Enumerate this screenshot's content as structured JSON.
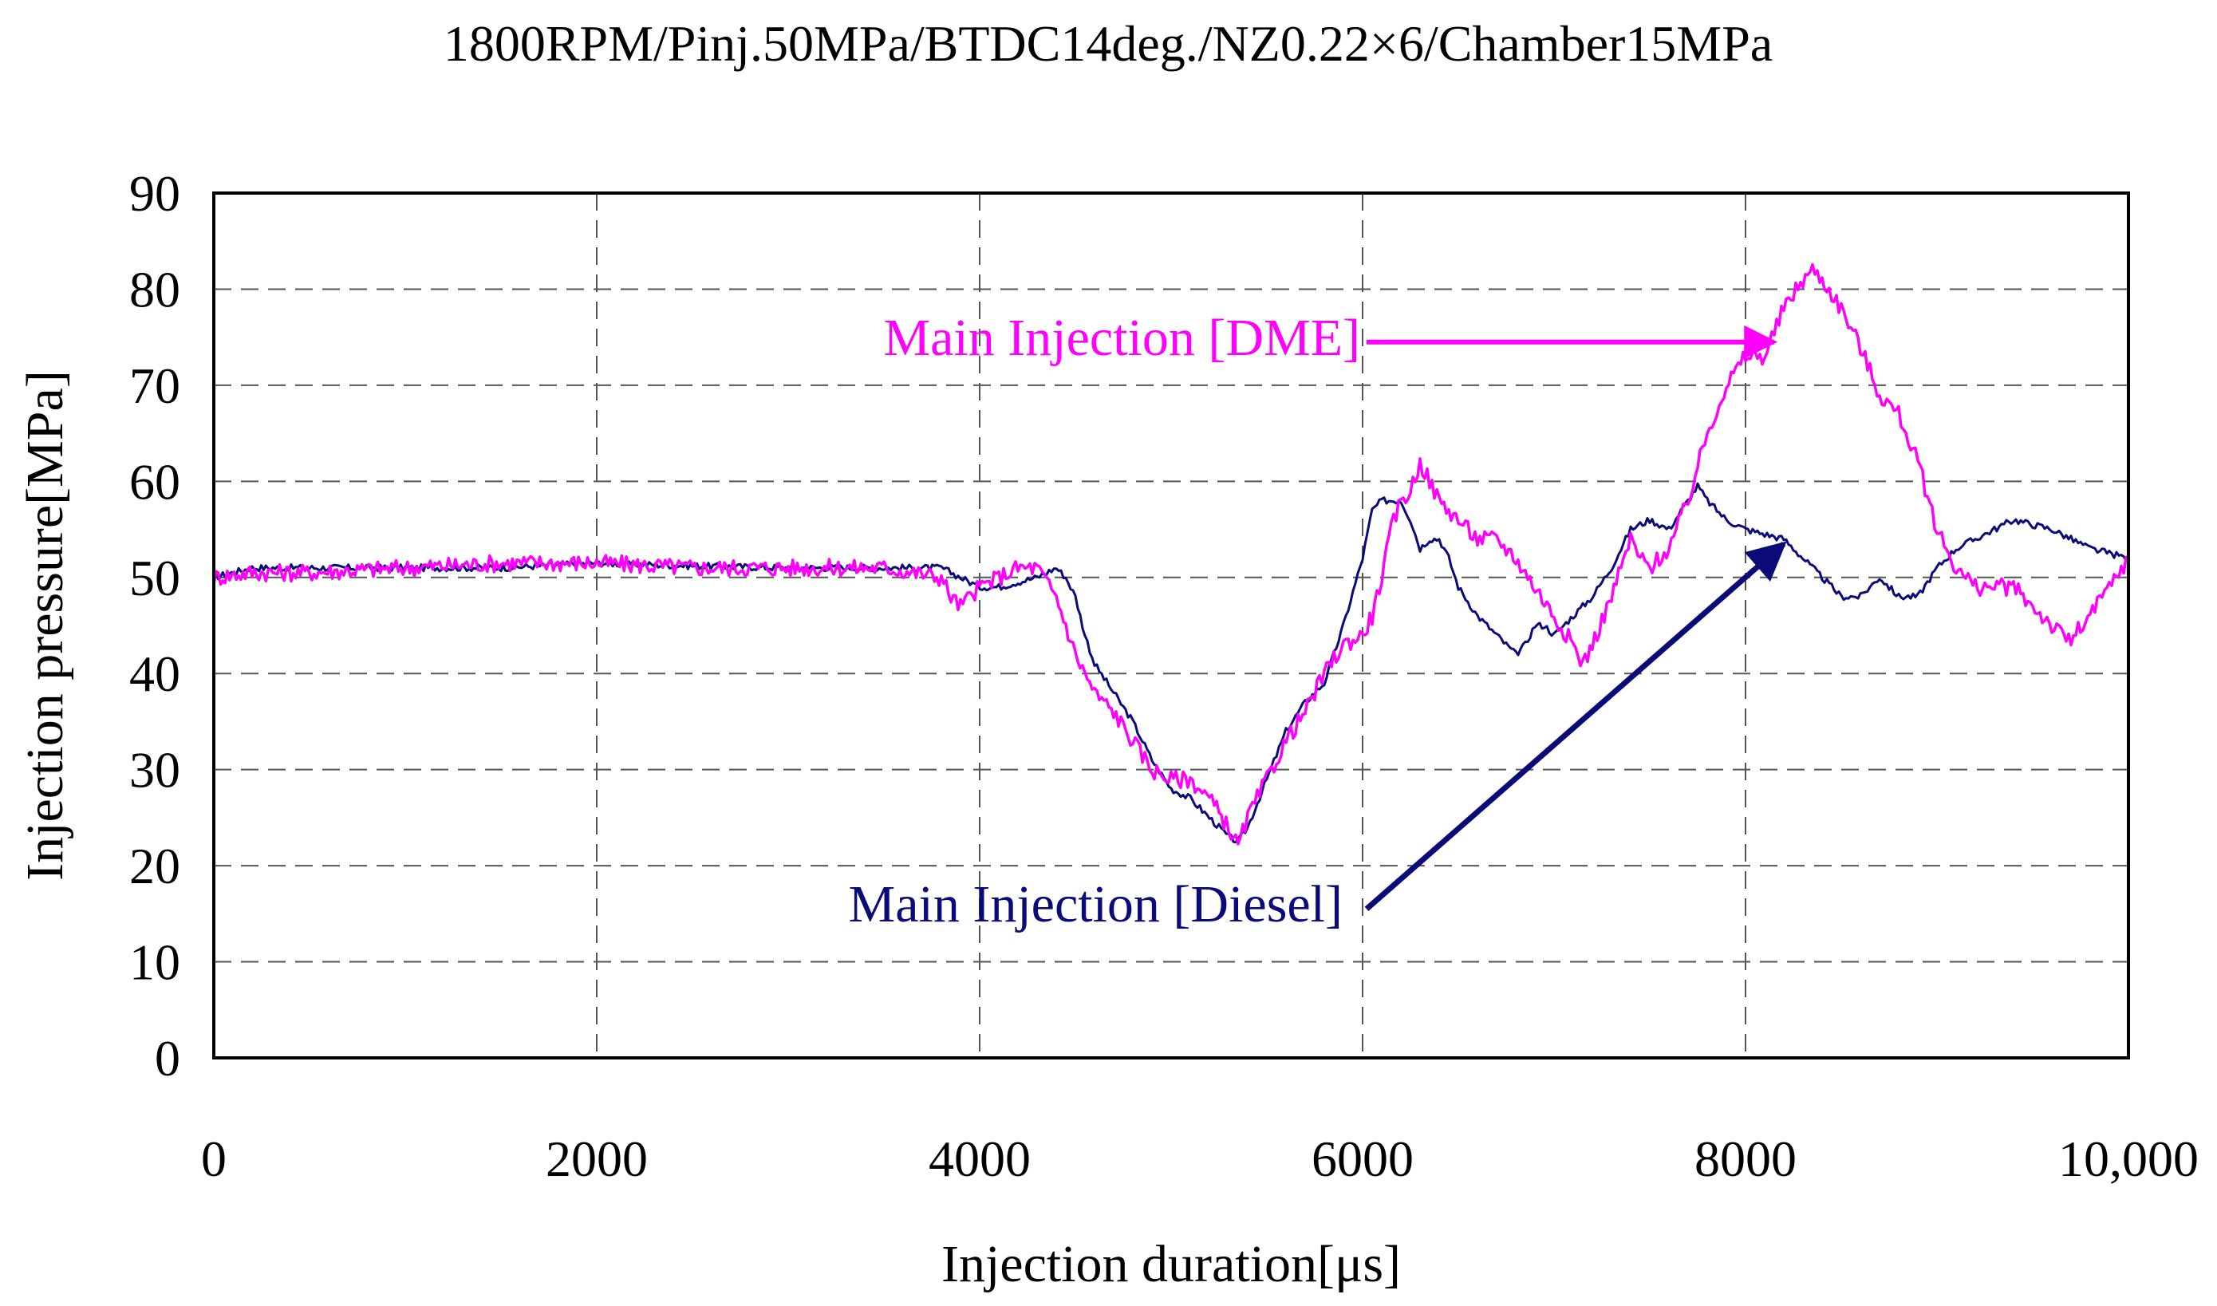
{
  "chart_data": {
    "type": "line",
    "title": "1800RPM/Pinj.50MPa/BTDC14deg./NZ0.22×6/Chamber15MPa",
    "xlabel": "Injection duration[μs]",
    "ylabel": "Injection pressure[MPa]",
    "xlim": [
      0,
      10000
    ],
    "ylim": [
      0,
      90
    ],
    "xticks": [
      0,
      2000,
      4000,
      6000,
      8000,
      10000
    ],
    "xtick_labels": [
      "0",
      "2000",
      "4000",
      "6000",
      "8000",
      "10,000"
    ],
    "yticks": [
      0,
      10,
      20,
      30,
      40,
      50,
      60,
      70,
      80,
      90
    ],
    "ytick_labels": [
      "0",
      "10",
      "20",
      "30",
      "40",
      "50",
      "60",
      "70",
      "80",
      "90"
    ],
    "grid": true,
    "series": [
      {
        "name": "Main Injection [Diesel]",
        "color": "#0a0a78",
        "x": [
          0,
          200,
          500,
          1000,
          1500,
          2000,
          2500,
          3000,
          3500,
          3800,
          3900,
          4000,
          4100,
          4200,
          4300,
          4400,
          4450,
          4500,
          4550,
          4600,
          4700,
          4800,
          4900,
          5000,
          5100,
          5200,
          5300,
          5350,
          5400,
          5500,
          5600,
          5700,
          5800,
          5900,
          6000,
          6050,
          6100,
          6200,
          6250,
          6300,
          6350,
          6400,
          6450,
          6500,
          6600,
          6700,
          6800,
          6850,
          6900,
          6950,
          7000,
          7100,
          7200,
          7300,
          7400,
          7500,
          7600,
          7700,
          7750,
          7800,
          7900,
          8000,
          8100,
          8200,
          8300,
          8400,
          8500,
          8600,
          8700,
          8800,
          8900,
          9000,
          9100,
          9200,
          9300,
          9400,
          9500,
          9600,
          9700,
          9800,
          9900,
          10000
        ],
        "y": [
          50,
          51,
          51,
          51,
          51,
          51.5,
          51.2,
          51,
          51,
          51,
          50,
          49,
          49,
          49.5,
          50,
          51,
          50,
          48,
          44,
          41,
          38,
          35,
          31,
          28,
          27,
          25,
          23,
          22.5,
          24,
          29,
          34,
          37,
          39,
          45,
          52,
          57,
          58,
          58,
          56,
          53,
          54,
          54,
          52,
          49,
          46,
          44,
          42,
          43,
          45,
          45,
          44,
          46,
          48,
          51,
          55,
          56,
          55,
          58,
          59.5,
          58,
          56,
          55,
          54.5,
          54,
          52,
          50,
          48,
          48,
          50,
          48,
          48,
          51,
          53,
          54,
          55,
          56,
          55.5,
          55,
          54,
          53,
          52.5,
          52
        ]
      },
      {
        "name": "Main Injection [DME]",
        "color": "#ff00ff",
        "x": [
          0,
          200,
          500,
          1000,
          1500,
          2000,
          2500,
          3000,
          3500,
          3800,
          3850,
          3900,
          4000,
          4100,
          4200,
          4300,
          4400,
          4500,
          4600,
          4700,
          4800,
          4900,
          5000,
          5100,
          5200,
          5300,
          5350,
          5400,
          5500,
          5600,
          5700,
          5800,
          5900,
          6000,
          6050,
          6100,
          6150,
          6200,
          6250,
          6300,
          6350,
          6400,
          6500,
          6600,
          6700,
          6800,
          6900,
          7000,
          7100,
          7150,
          7200,
          7300,
          7400,
          7450,
          7500,
          7600,
          7700,
          7800,
          7900,
          8000,
          8100,
          8200,
          8300,
          8350,
          8400,
          8500,
          8600,
          8700,
          8800,
          8900,
          9000,
          9100,
          9200,
          9300,
          9400,
          9500,
          9600,
          9650,
          9700,
          9800,
          9900,
          10000
        ],
        "y": [
          50,
          50.5,
          50.5,
          51,
          51.5,
          51.5,
          51,
          51,
          51,
          50,
          48,
          47,
          49,
          50,
          51,
          51,
          48,
          42,
          38,
          36,
          33,
          30,
          29,
          29,
          27,
          24,
          22,
          25,
          29,
          33,
          36,
          40,
          43,
          44,
          46,
          50,
          55,
          58,
          59,
          62,
          60,
          58,
          56,
          54,
          54,
          52,
          49,
          46,
          43,
          41,
          43,
          48,
          54,
          52,
          51,
          53,
          58,
          65,
          70,
          73,
          73,
          78,
          81,
          82,
          81,
          78,
          74,
          69,
          67,
          62,
          55,
          51,
          49,
          49,
          49,
          47,
          45,
          44,
          43.5,
          46,
          49,
          52
        ]
      }
    ],
    "annotations": [
      {
        "text": "Main Injection [DME]",
        "color": "#ff00ff",
        "arrow_from": [
          6000,
          74.5
        ],
        "arrow_to": [
          8150,
          74.5
        ]
      },
      {
        "text": "Main Injection [Diesel]",
        "color": "#0a0a78",
        "arrow_from": [
          6000,
          15.5
        ],
        "arrow_to": [
          8200,
          53.5
        ]
      }
    ]
  }
}
